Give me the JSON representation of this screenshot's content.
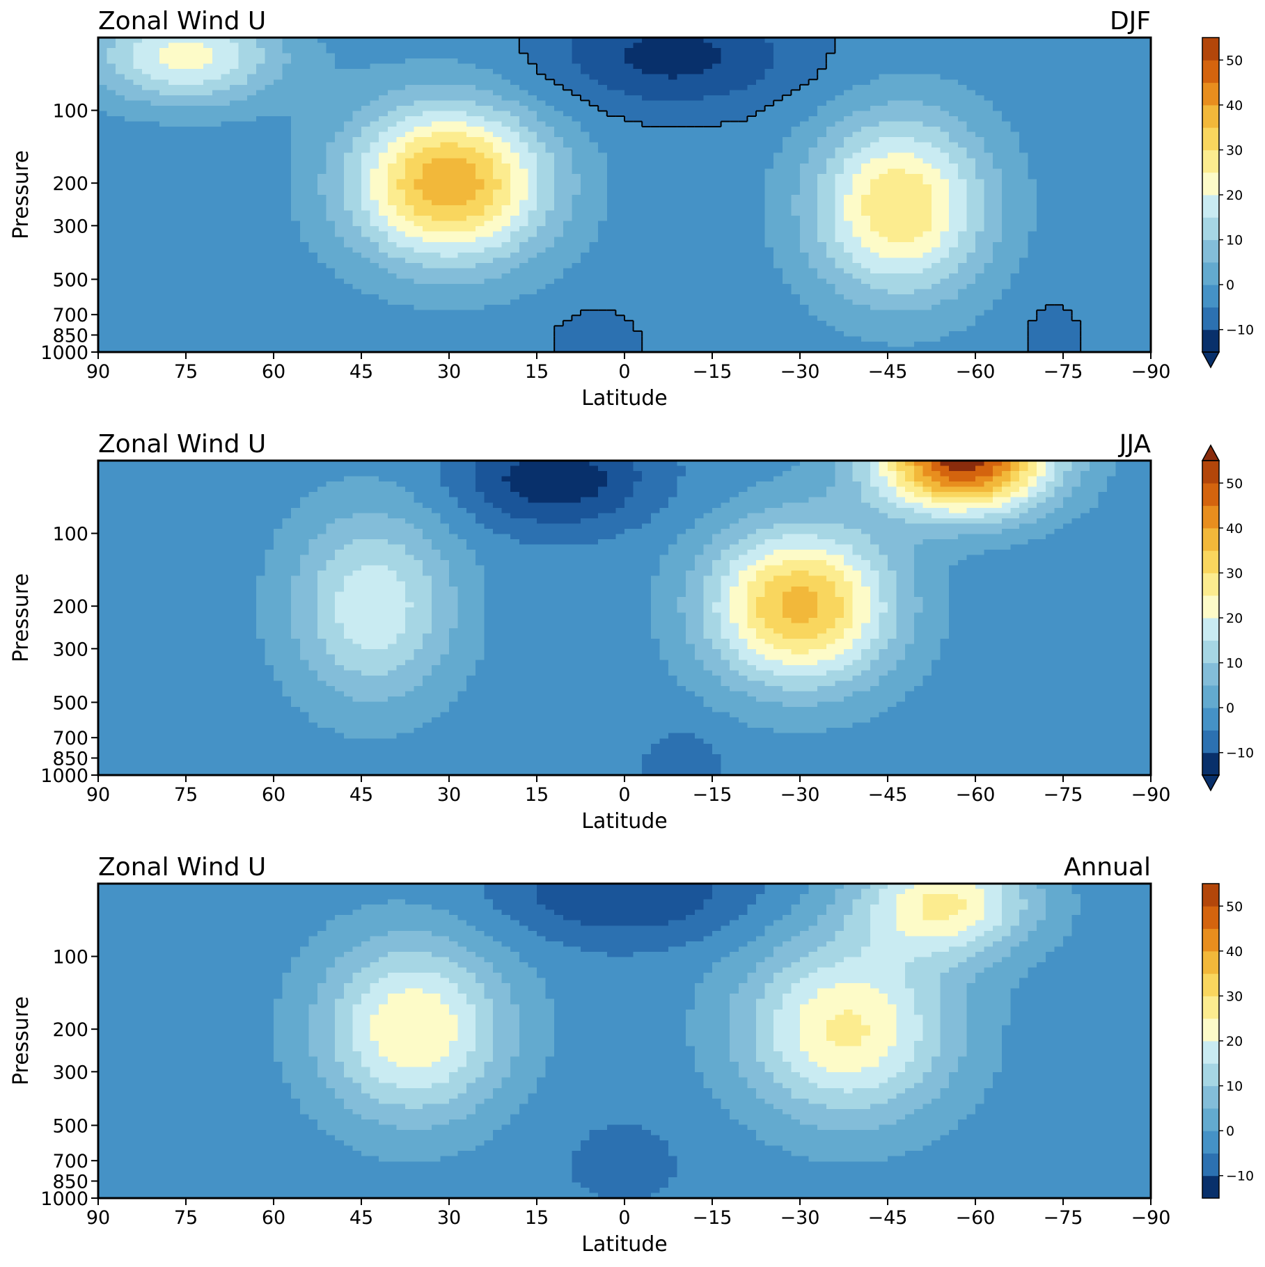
{
  "chart_data": [
    {
      "type": "heatmap",
      "title": "Zonal Wind U",
      "season": "DJF",
      "xlabel": "Latitude",
      "ylabel": "Pressure",
      "x_ticks": [
        90,
        75,
        60,
        45,
        30,
        15,
        0,
        -15,
        -30,
        -45,
        -60,
        -75,
        -90
      ],
      "x_range": [
        90,
        -90
      ],
      "y_ticks": [
        100,
        200,
        300,
        500,
        700,
        850,
        1000
      ],
      "y_scale": "log-pressure",
      "colorbar": {
        "levels": [
          -15,
          55
        ],
        "ticks": [
          -10,
          0,
          10,
          20,
          30,
          40,
          50
        ],
        "extend": "min"
      },
      "zero_contour": true,
      "jets": [
        {
          "lat": 30,
          "p": 200,
          "u": 42,
          "wlat": 17,
          "wp": 0.75
        },
        {
          "lat": -47,
          "p": 250,
          "u": 33,
          "wlat": 15,
          "wp": 0.85
        },
        {
          "lat": 75,
          "p": 60,
          "u": 25,
          "wlat": 16,
          "wp": 0.45
        }
      ],
      "easterlies": [
        {
          "lat": -8,
          "p": 60,
          "u": -14,
          "wlat": 22,
          "wp": 0.5
        },
        {
          "lat": 5,
          "p": 950,
          "u": -7,
          "wlat": 7,
          "wp": 0.35
        },
        {
          "lat": -73,
          "p": 900,
          "u": -4,
          "wlat": 6,
          "wp": 0.5
        }
      ]
    },
    {
      "type": "heatmap",
      "title": "Zonal Wind U",
      "season": "JJA",
      "xlabel": "Latitude",
      "ylabel": "Pressure",
      "x_ticks": [
        90,
        75,
        60,
        45,
        30,
        15,
        0,
        -15,
        -30,
        -45,
        -60,
        -75,
        -90
      ],
      "x_range": [
        90,
        -90
      ],
      "y_ticks": [
        100,
        200,
        300,
        500,
        700,
        850,
        1000
      ],
      "y_scale": "log-pressure",
      "colorbar": {
        "levels": [
          -15,
          55
        ],
        "ticks": [
          -10,
          0,
          10,
          20,
          30,
          40,
          50
        ],
        "extend": "both"
      },
      "zero_contour": false,
      "jets": [
        {
          "lat": -30,
          "p": 200,
          "u": 40,
          "wlat": 16,
          "wp": 0.75
        },
        {
          "lat": -58,
          "p": 50,
          "u": 56,
          "wlat": 15,
          "wp": 0.5
        },
        {
          "lat": 43,
          "p": 200,
          "u": 22,
          "wlat": 14,
          "wp": 0.9
        }
      ],
      "easterlies": [
        {
          "lat": 12,
          "p": 60,
          "u": -16,
          "wlat": 16,
          "wp": 0.45
        },
        {
          "lat": -10,
          "p": 950,
          "u": -7,
          "wlat": 6,
          "wp": 0.35
        }
      ]
    },
    {
      "type": "heatmap",
      "title": "Zonal Wind U",
      "season": "Annual",
      "xlabel": "Latitude",
      "ylabel": "Pressure",
      "x_ticks": [
        90,
        75,
        60,
        45,
        30,
        15,
        0,
        -15,
        -30,
        -45,
        -60,
        -75,
        -90
      ],
      "x_range": [
        90,
        -90
      ],
      "y_ticks": [
        100,
        200,
        300,
        500,
        700,
        850,
        1000
      ],
      "y_scale": "log-pressure",
      "colorbar": {
        "levels": [
          -15,
          55
        ],
        "ticks": [
          -10,
          0,
          10,
          20,
          30,
          40,
          50
        ],
        "extend": "neither"
      },
      "zero_contour": false,
      "jets": [
        {
          "lat": 36,
          "p": 200,
          "u": 28,
          "wlat": 16,
          "wp": 0.85
        },
        {
          "lat": -38,
          "p": 200,
          "u": 29,
          "wlat": 18,
          "wp": 0.85
        },
        {
          "lat": -55,
          "p": 60,
          "u": 28,
          "wlat": 15,
          "wp": 0.5
        }
      ],
      "easterlies": [
        {
          "lat": 0,
          "p": 55,
          "u": -12,
          "wlat": 22,
          "wp": 0.45
        },
        {
          "lat": 0,
          "p": 700,
          "u": -3,
          "wlat": 16,
          "wp": 0.6
        }
      ]
    }
  ]
}
